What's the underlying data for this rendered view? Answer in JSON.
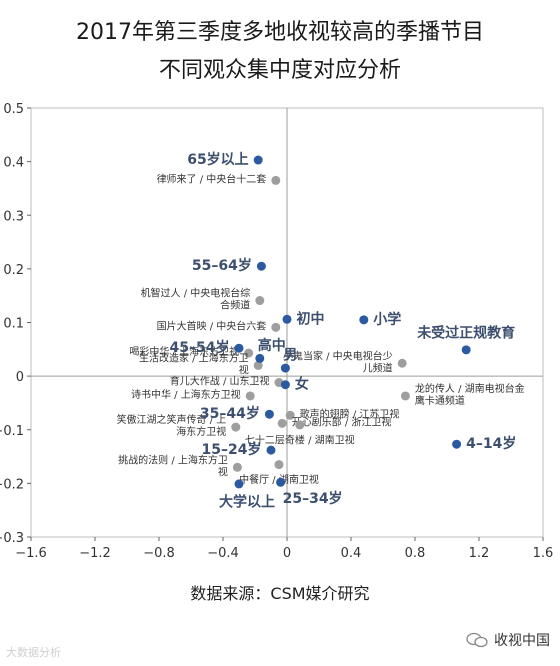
{
  "title_line1": "2017年第三季度多地收视较高的季播节目",
  "title_line2": "不同观众集中度对应分析",
  "source": "数据来源：CSM媒介研究",
  "watermark_left": "大数据分析",
  "watermark_right": "收视中国",
  "colors": {
    "audience": "#2b5aa0",
    "program": "#9e9e9e",
    "axis": "#666666",
    "text": "#333333"
  },
  "chart_data": {
    "type": "scatter",
    "xlim": [
      -1.6,
      1.6
    ],
    "ylim": [
      -0.3,
      0.5
    ],
    "x_ticks": [
      "−1.6",
      "−1.2",
      "−0.8",
      "−0.4",
      "0",
      "0.4",
      "0.8",
      "1.2",
      "1.6"
    ],
    "y_ticks": [
      "0.5",
      "0.4",
      "0.3",
      "0.2",
      "0.1",
      "0",
      "−0.1",
      "−0.2",
      "−0.3"
    ],
    "series": [
      {
        "points": [
          {
            "x": -0.18,
            "y": 0.403,
            "label": "65岁以上",
            "pos": "left"
          },
          {
            "x": -0.16,
            "y": 0.205,
            "label": "55–64岁",
            "pos": "left"
          },
          {
            "x": -0.3,
            "y": 0.052,
            "label": "45–54岁",
            "pos": "left"
          },
          {
            "x": 0.0,
            "y": 0.106,
            "label": "初中",
            "pos": "right"
          },
          {
            "x": 0.48,
            "y": 0.105,
            "label": "小学",
            "pos": "right"
          },
          {
            "x": 1.12,
            "y": 0.049,
            "label": "未受过正规教育",
            "pos": "above"
          },
          {
            "x": -0.17,
            "y": 0.033,
            "label": "高中",
            "pos": "aboveright"
          },
          {
            "x": -0.01,
            "y": 0.015,
            "label": "男",
            "pos": "aboveright"
          },
          {
            "x": -0.01,
            "y": -0.016,
            "label": "女",
            "pos": "right"
          },
          {
            "x": -0.11,
            "y": -0.071,
            "label": "35–44岁",
            "pos": "left"
          },
          {
            "x": 1.06,
            "y": -0.127,
            "label": "4–14岁",
            "pos": "right"
          },
          {
            "x": -0.1,
            "y": -0.138,
            "label": "15–24岁",
            "pos": "left"
          },
          {
            "x": -0.04,
            "y": -0.198,
            "label": "25–34岁",
            "pos": "belowright"
          },
          {
            "x": -0.3,
            "y": -0.201,
            "label": "大学以上",
            "pos": "belowleft"
          }
        ]
      },
      {
        "points": [
          {
            "x": -0.07,
            "y": 0.365,
            "label": [
              "律师来了 / 中央台十二套"
            ],
            "pos": "left"
          },
          {
            "x": -0.17,
            "y": 0.141,
            "label": [
              "机智过人 / 中央电视台综",
              "合频道"
            ],
            "pos": "left"
          },
          {
            "x": -0.07,
            "y": 0.091,
            "label": [
              "国片大首映 / 中央台六套"
            ],
            "pos": "left"
          },
          {
            "x": -0.24,
            "y": 0.043,
            "label": [
              "喝彩中华 / 上海东方卫视"
            ],
            "pos": "left"
          },
          {
            "x": -0.18,
            "y": 0.02,
            "label": [
              "生活改造家 / 上海东方卫",
              "视"
            ],
            "pos": "left"
          },
          {
            "x": 0.72,
            "y": 0.024,
            "label": [
              "小鬼当家 / 中央电视台少",
              "儿频道"
            ],
            "pos": "left"
          },
          {
            "x": -0.05,
            "y": -0.012,
            "label": [
              "育儿大作战 / 山东卫视"
            ],
            "pos": "left"
          },
          {
            "x": -0.23,
            "y": -0.037,
            "label": [
              "诗书中华 / 上海东方卫视"
            ],
            "pos": "left"
          },
          {
            "x": 0.74,
            "y": -0.037,
            "label": [
              "龙的传人 / 湖南电视台金",
              "鹰卡通频道"
            ],
            "pos": "right"
          },
          {
            "x": 0.02,
            "y": -0.073,
            "label": [
              "歌声的翅膀 / 江苏卫视"
            ],
            "pos": "right"
          },
          {
            "x": -0.03,
            "y": -0.088,
            "label": [
              "开心剧乐部 / 浙江卫视"
            ],
            "pos": "right"
          },
          {
            "x": -0.32,
            "y": -0.095,
            "label": [
              "笑傲江湖之笑声传奇 / 上",
              "海东方卫视"
            ],
            "pos": "left"
          },
          {
            "x": 0.08,
            "y": -0.091,
            "label": [
              "七十二层奇楼 / 湖南卫视"
            ],
            "pos": "below"
          },
          {
            "x": -0.05,
            "y": -0.165,
            "label": [
              "中餐厅 / 湖南卫视"
            ],
            "pos": "below"
          },
          {
            "x": -0.31,
            "y": -0.17,
            "label": [
              "挑战的法则 / 上海东方卫",
              "视"
            ],
            "pos": "left"
          }
        ]
      }
    ]
  }
}
